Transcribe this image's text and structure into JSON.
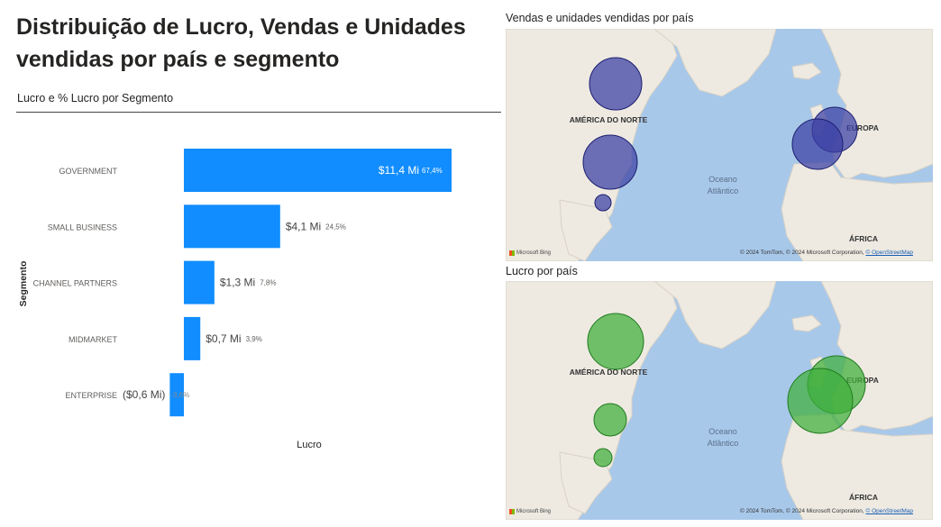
{
  "report": {
    "title_line1": "Distribuição de Lucro, Vendas e Unidades",
    "title_line2": "vendidas por país e segmento"
  },
  "chart_data": [
    {
      "type": "bar",
      "orientation": "horizontal",
      "title": "Lucro e % Lucro por Segmento",
      "xlabel": "Lucro",
      "ylabel": "Segmento",
      "categories": [
        "GOVERNMENT",
        "SMALL BUSINESS",
        "CHANNEL PARTNERS",
        "MIDMARKET",
        "ENTERPRISE"
      ],
      "values": [
        11.4,
        4.1,
        1.3,
        0.7,
        -0.6
      ],
      "value_labels": [
        "$11,4 Mi",
        "$4,1 Mi",
        "$1,3 Mi",
        "$0,7 Mi",
        "($0,6 Mi)"
      ],
      "percent_labels": [
        "67,4%",
        "24,5%",
        "7,8%",
        "3,9%",
        "-3,6%"
      ],
      "bar_color": "#118dff",
      "grid": false
    }
  ],
  "maps": {
    "sales": {
      "title": "Vendas e unidades vendidas por país",
      "bubble_fill": "#3a3fa3",
      "bubble_stroke": "#1c1f6e"
    },
    "profit": {
      "title": "Lucro por país",
      "bubble_fill": "#3fae3a",
      "bubble_stroke": "#1f7a1c"
    },
    "labels": {
      "north_america": "AMÉRICA DO NORTE",
      "europe": "EUROPA",
      "africa": "ÁFRICA",
      "ocean_1": "Oceano",
      "ocean_2": "Atlântico"
    },
    "bing": "Microsoft Bing",
    "copyright": "© 2024 TomTom, © 2024 Microsoft Corporation,",
    "osm": "© OpenStreetMap"
  }
}
